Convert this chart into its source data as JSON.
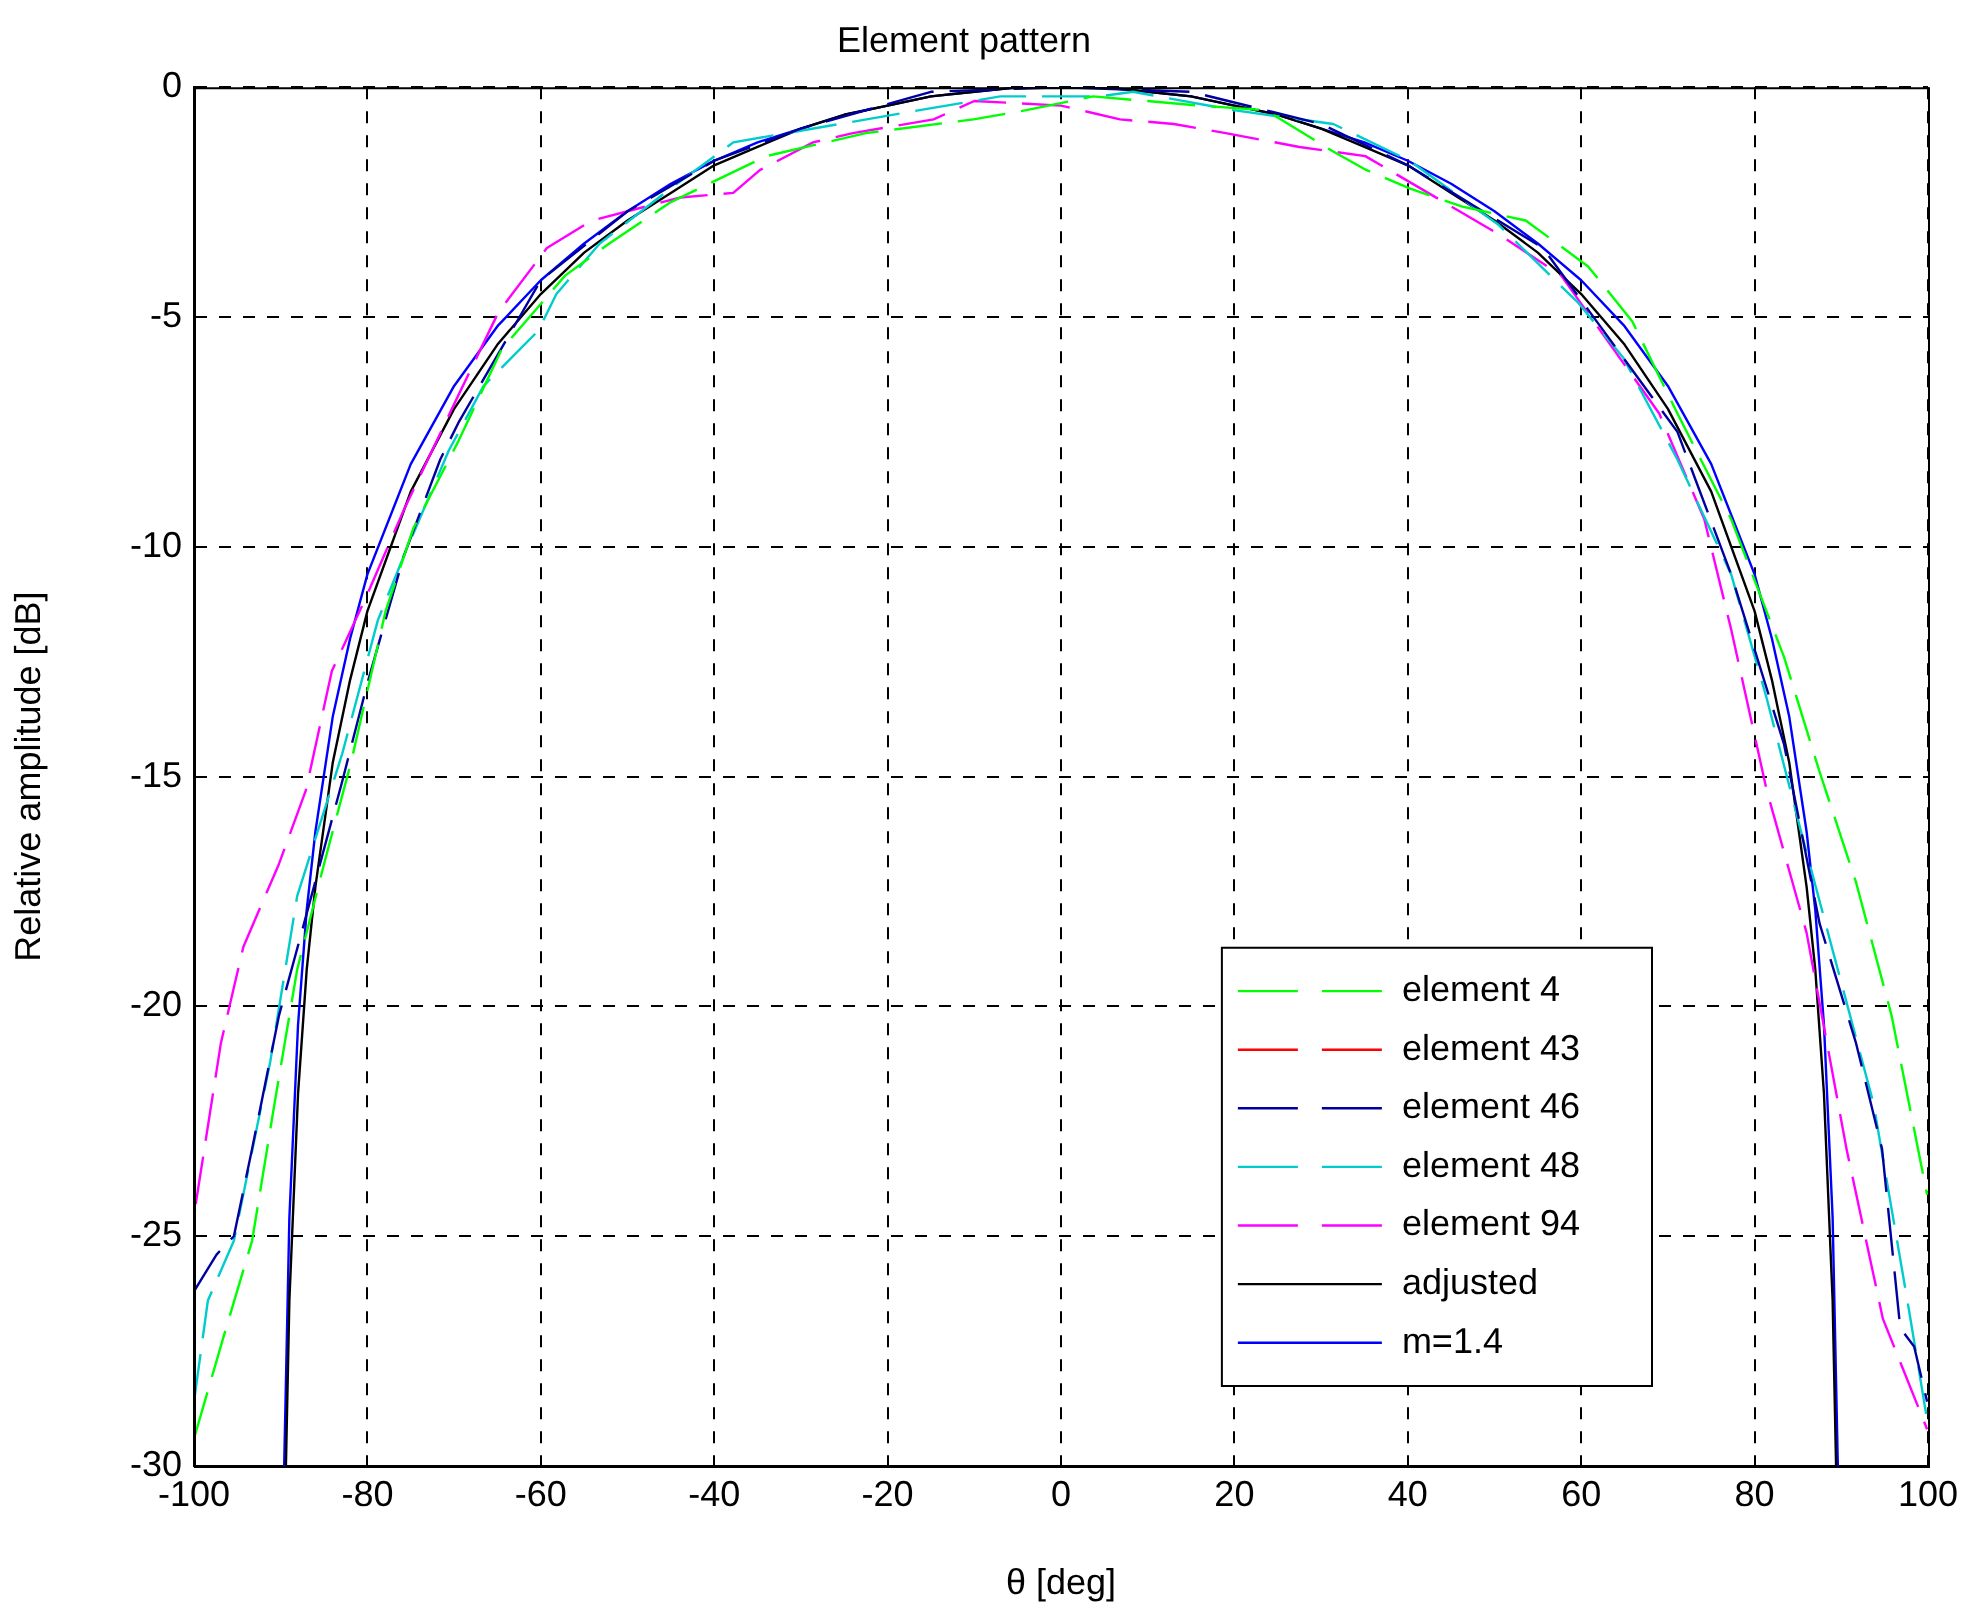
{
  "chart_data": {
    "type": "line",
    "title": "Element pattern",
    "xlabel": "θ [deg]",
    "ylabel": "Relative amplitude [dB]",
    "xlim": [
      -100,
      100
    ],
    "xticks": [
      -100,
      -80,
      -60,
      -40,
      -20,
      0,
      20,
      40,
      60,
      80,
      100
    ],
    "ylim": [
      -30,
      0
    ],
    "yticks": [
      -30,
      -25,
      -20,
      -15,
      -10,
      -5,
      0
    ],
    "grid": true,
    "legend": "bottom right",
    "marker": "none",
    "series": [
      {
        "name": "element 4",
        "color": "#00ff00",
        "line_style": "dashed",
        "x": [
          -100,
          -96.3,
          -93.3,
          -90.7,
          -88.1,
          -85,
          -81.9,
          -77.9,
          -74.7,
          -69.5,
          -64.5,
          -57.2,
          -52.1,
          -45,
          -34,
          -22.5,
          -10.1,
          -4,
          3.7,
          16,
          23.6,
          31.4,
          35.2,
          40.2,
          46.3,
          53.6,
          60.8,
          65.9,
          71.1,
          77.3,
          83.4,
          87.5,
          91.7,
          95.8,
          99.9
        ],
        "values": [
          -29.4,
          -27,
          -25.1,
          -22.1,
          -19.2,
          -16.9,
          -14.7,
          -11.4,
          -9.6,
          -7.7,
          -5.7,
          -4.1,
          -3.4,
          -2.5,
          -1.5,
          -1,
          -0.7,
          -0.5,
          -0.2,
          -0.4,
          -0.5,
          -1.4,
          -1.8,
          -2.2,
          -2.6,
          -2.9,
          -3.9,
          -5.1,
          -7.1,
          -9.4,
          -12.4,
          -14.9,
          -17.3,
          -20.2,
          -24.1
        ]
      },
      {
        "name": "element 43",
        "color": "#ff0000",
        "line_style": "dashed",
        "values": [
          null,
          null,
          null,
          null,
          null,
          null,
          null,
          null,
          null,
          null,
          null,
          null,
          null,
          null,
          null,
          null,
          null,
          null,
          null,
          null,
          null,
          null,
          null,
          null,
          null,
          null,
          null,
          null,
          null,
          null
        ]
      },
      {
        "name": "element 46",
        "color": "#0000a0",
        "line_style": "dashed",
        "x": [
          -100,
          -97.4,
          -95.4,
          -93.3,
          -90.2,
          -87.6,
          -82.9,
          -79.9,
          -75.8,
          -71.6,
          -69.5,
          -60,
          -50,
          -40,
          -30,
          -15,
          0,
          15,
          30,
          40,
          55.6,
          71.1,
          77.3,
          83.4,
          87.5,
          91.7,
          94.7,
          96.8,
          98.4,
          99.9
        ],
        "values": [
          -26.2,
          -25.4,
          -25,
          -23.1,
          -20.2,
          -18.4,
          -15.1,
          -12.9,
          -10.2,
          -8.1,
          -7.3,
          -4.2,
          -2.7,
          -1.6,
          -0.9,
          -0.1,
          0,
          -0.1,
          -0.8,
          -1.7,
          -3.5,
          -7.5,
          -10.6,
          -14.3,
          -18.2,
          -20.8,
          -23.1,
          -27,
          -27.4,
          -28.6
        ]
      },
      {
        "name": "element 48",
        "color": "#00cccc",
        "line_style": "dashed",
        "x": [
          -100,
          -98.4,
          -95.4,
          -91.2,
          -88.1,
          -82.9,
          -78.8,
          -75.8,
          -70.6,
          -66.6,
          -60.3,
          -58.2,
          -53.2,
          -45,
          -37.8,
          -16.3,
          -7,
          4.5,
          8.3,
          19.9,
          31.4,
          40.2,
          50.5,
          59.7,
          64.9,
          71.1,
          77.3,
          81.4,
          85.5,
          89.6,
          93.7,
          97.8,
          99.9
        ],
        "values": [
          -28.6,
          -26.4,
          -25.1,
          -21.2,
          -17.6,
          -14.5,
          -11.6,
          -10.2,
          -7.9,
          -6.5,
          -5.3,
          -4.5,
          -3.4,
          -2.2,
          -1.2,
          -0.5,
          -0.2,
          -0.2,
          -0.1,
          -0.5,
          -0.8,
          -1.6,
          -3,
          -4.7,
          -5.9,
          -8.1,
          -10.6,
          -13.3,
          -16.3,
          -19.2,
          -22.1,
          -26.6,
          -29
        ]
      },
      {
        "name": "element 94",
        "color": "#ff00ff",
        "line_style": "dashed",
        "x": [
          -99.8,
          -96.9,
          -94.3,
          -90.2,
          -87.1,
          -84.1,
          -80.4,
          -75.8,
          -69.5,
          -64.9,
          -59.3,
          -54.1,
          -43.9,
          -37.8,
          -34.7,
          -28.6,
          -24,
          -14.7,
          -10,
          0,
          6.8,
          13,
          19,
          27.5,
          35.1,
          50.5,
          57.7,
          69,
          74.2,
          77.3,
          81.4,
          86,
          90.6,
          94.8,
          99.9
        ],
        "values": [
          -24.3,
          -20.8,
          -18.7,
          -16.9,
          -15.3,
          -12.7,
          -11.2,
          -9.2,
          -6.7,
          -4.9,
          -3.5,
          -2.9,
          -2.4,
          -2.3,
          -1.8,
          -1.2,
          -1,
          -0.7,
          -0.3,
          -0.4,
          -0.7,
          -0.8,
          -1,
          -1.3,
          -1.5,
          -3.2,
          -4.1,
          -7.1,
          -9.4,
          -11.8,
          -15.3,
          -18.4,
          -23.1,
          -26.8,
          -29.2
        ]
      },
      {
        "name": "adjusted",
        "color": "#000000",
        "line_style": "solid",
        "x": [
          -89.4,
          -89,
          -88,
          -87,
          -86,
          -84,
          -82,
          -80,
          -75,
          -70,
          -65,
          -60,
          -55,
          -50,
          -45,
          -40,
          -35,
          -30,
          -25,
          -20,
          -15,
          -10,
          -5,
          0,
          5,
          10,
          15,
          20,
          25,
          30,
          35,
          40,
          45,
          50,
          55,
          60,
          65,
          70,
          75,
          80,
          82,
          84,
          86,
          87,
          88,
          89,
          89.4
        ],
        "values": [
          -30,
          -26.4,
          -21.9,
          -19.2,
          -17.4,
          -14.7,
          -12.9,
          -11.4,
          -8.8,
          -7,
          -5.6,
          -4.5,
          -3.6,
          -2.9,
          -2.3,
          -1.7,
          -1.3,
          -0.9,
          -0.6,
          -0.4,
          -0.2,
          -0.1,
          0,
          0,
          0,
          -0.1,
          -0.2,
          -0.4,
          -0.6,
          -0.9,
          -1.3,
          -1.7,
          -2.3,
          -2.9,
          -3.6,
          -4.5,
          -5.6,
          -7,
          -8.8,
          -11.4,
          -12.9,
          -14.7,
          -17.4,
          -19.2,
          -21.9,
          -26.4,
          -30
        ]
      },
      {
        "name": "m=1.4",
        "color": "#0000ff",
        "line_style": "solid",
        "x": [
          -89.6,
          -89,
          -88,
          -87,
          -86,
          -84,
          -82,
          -80,
          -75,
          -70,
          -65,
          -60,
          -55,
          -50,
          -45,
          -40,
          -35,
          -30,
          -25,
          -20,
          -15,
          -10,
          -5,
          0,
          5,
          10,
          15,
          20,
          25,
          30,
          35,
          40,
          45,
          50,
          55,
          60,
          65,
          70,
          75,
          80,
          82,
          84,
          86,
          87,
          88,
          89,
          89.6
        ],
        "values": [
          -30,
          -24.6,
          -20.4,
          -17.9,
          -16.2,
          -13.7,
          -12,
          -10.6,
          -8.2,
          -6.5,
          -5.2,
          -4.2,
          -3.4,
          -2.7,
          -2.1,
          -1.6,
          -1.2,
          -0.9,
          -0.6,
          -0.4,
          -0.2,
          -0.1,
          0,
          0,
          0,
          -0.1,
          -0.2,
          -0.4,
          -0.6,
          -0.9,
          -1.2,
          -1.6,
          -2.1,
          -2.7,
          -3.4,
          -4.2,
          -5.2,
          -6.5,
          -8.2,
          -10.6,
          -12,
          -13.7,
          -16.2,
          -17.9,
          -20.4,
          -24.6,
          -30
        ]
      }
    ]
  }
}
